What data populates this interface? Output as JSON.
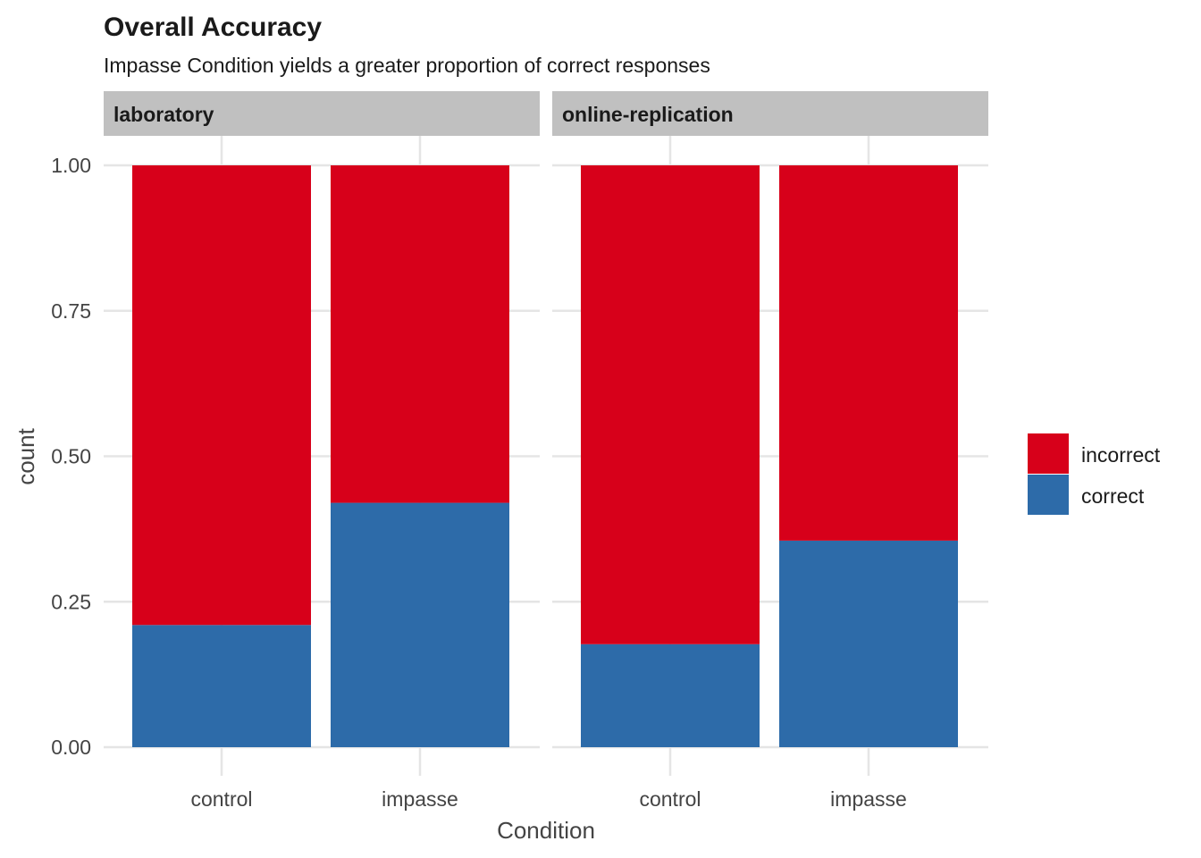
{
  "chart_data": {
    "type": "bar",
    "stacked": true,
    "title": "Overall Accuracy",
    "subtitle": "Impasse Condition yields a greater proportion of correct responses",
    "xlabel": "Condition",
    "ylabel": "count",
    "ylim": [
      0,
      1
    ],
    "yticks": [
      "0.00",
      "0.25",
      "0.50",
      "0.75",
      "1.00"
    ],
    "ytick_values": [
      0,
      0.25,
      0.5,
      0.75,
      1.0
    ],
    "categories": [
      "control",
      "impasse"
    ],
    "legend": {
      "position": "right",
      "entries": [
        "incorrect",
        "correct"
      ]
    },
    "colors": {
      "incorrect": "#D7001A",
      "correct": "#2D6BA9"
    },
    "facets": [
      {
        "label": "laboratory",
        "series": [
          {
            "name": "correct",
            "values": [
              0.21,
              0.42
            ]
          },
          {
            "name": "incorrect",
            "values": [
              0.79,
              0.58
            ]
          }
        ]
      },
      {
        "label": "online-replication",
        "series": [
          {
            "name": "correct",
            "values": [
              0.177,
              0.355
            ]
          },
          {
            "name": "incorrect",
            "values": [
              0.823,
              0.645
            ]
          }
        ]
      }
    ]
  }
}
